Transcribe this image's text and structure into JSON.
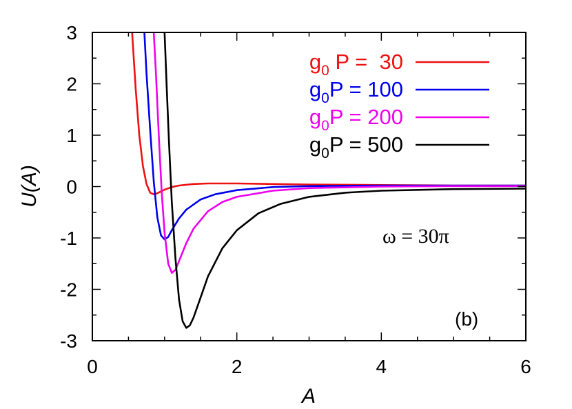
{
  "chart_data": {
    "type": "line",
    "title": "",
    "xlabel": "A",
    "ylabel": "U(A)",
    "xlim": [
      0,
      6
    ],
    "ylim": [
      -3,
      3
    ],
    "xticks": [
      0,
      2,
      4,
      6
    ],
    "yticks": [
      3,
      2,
      1,
      0,
      -1,
      -2,
      -3
    ],
    "x_tick_labels": [
      "0",
      "2",
      "4",
      "6"
    ],
    "y_tick_labels": [
      "3",
      "2",
      "1",
      "0",
      "-1",
      "-2",
      "-3"
    ],
    "grid": false,
    "legend_position": "top-right",
    "annotations": {
      "omega": "ω = 30π",
      "panel": "(b)"
    },
    "series": [
      {
        "legend_prefix": "g",
        "legend_sub": "0",
        "legend_rest": " P =  30",
        "color": "#ee1111",
        "x": [
          0.55,
          0.6,
          0.65,
          0.7,
          0.75,
          0.8,
          0.85,
          0.9,
          1.0,
          1.1,
          1.2,
          1.4,
          1.6,
          1.8,
          2.0,
          2.5,
          3.0,
          4.0,
          5.0,
          6.0
        ],
        "y": [
          3.0,
          1.9,
          1.0,
          0.4,
          0.05,
          -0.12,
          -0.15,
          -0.13,
          -0.06,
          -0.01,
          0.02,
          0.05,
          0.06,
          0.06,
          0.06,
          0.05,
          0.04,
          0.03,
          0.02,
          0.02
        ]
      },
      {
        "legend_prefix": "g",
        "legend_sub": "0",
        "legend_rest": "P = 100",
        "color": "#0000ee",
        "x": [
          0.72,
          0.75,
          0.8,
          0.85,
          0.9,
          0.95,
          1.0,
          1.05,
          1.1,
          1.2,
          1.3,
          1.5,
          1.7,
          2.0,
          2.5,
          3.0,
          4.0,
          5.0,
          6.0
        ],
        "y": [
          3.0,
          2.2,
          1.1,
          0.1,
          -0.6,
          -0.95,
          -1.03,
          -0.98,
          -0.85,
          -0.62,
          -0.45,
          -0.25,
          -0.15,
          -0.07,
          -0.01,
          0.01,
          0.02,
          0.02,
          0.02
        ]
      },
      {
        "legend_prefix": "g",
        "legend_sub": "0",
        "legend_rest": "P = 200",
        "color": "#ee00ee",
        "x": [
          0.85,
          0.88,
          0.92,
          0.96,
          1.0,
          1.05,
          1.1,
          1.15,
          1.2,
          1.3,
          1.4,
          1.6,
          1.8,
          2.0,
          2.5,
          3.0,
          4.0,
          5.0,
          6.0
        ],
        "y": [
          3.0,
          2.2,
          1.0,
          -0.1,
          -0.9,
          -1.5,
          -1.68,
          -1.62,
          -1.45,
          -1.1,
          -0.82,
          -0.48,
          -0.3,
          -0.2,
          -0.08,
          -0.03,
          0.0,
          0.01,
          0.01
        ]
      },
      {
        "legend_prefix": "g",
        "legend_sub": "0",
        "legend_rest": "P = 500",
        "color": "#000000",
        "x": [
          1.0,
          1.03,
          1.06,
          1.1,
          1.15,
          1.2,
          1.25,
          1.3,
          1.35,
          1.4,
          1.5,
          1.6,
          1.8,
          2.0,
          2.3,
          2.6,
          3.0,
          3.5,
          4.0,
          5.0,
          6.0
        ],
        "y": [
          3.0,
          1.9,
          0.9,
          -0.3,
          -1.4,
          -2.2,
          -2.62,
          -2.75,
          -2.7,
          -2.55,
          -2.15,
          -1.75,
          -1.2,
          -0.85,
          -0.52,
          -0.34,
          -0.2,
          -0.12,
          -0.08,
          -0.05,
          -0.04
        ]
      }
    ]
  }
}
